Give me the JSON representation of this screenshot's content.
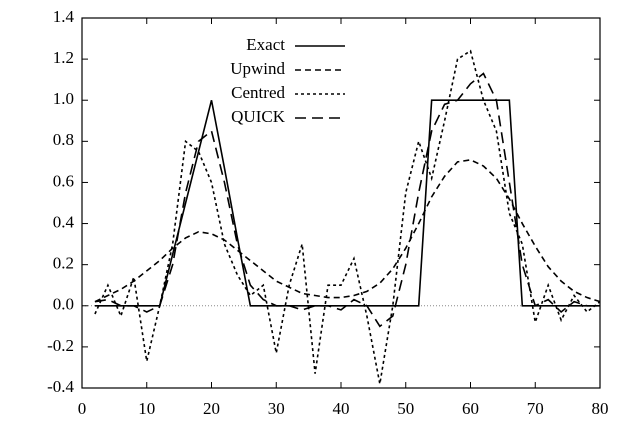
{
  "chart_data": {
    "type": "line",
    "x": [
      2,
      4,
      6,
      8,
      10,
      12,
      14,
      16,
      18,
      20,
      22,
      24,
      26,
      28,
      30,
      32,
      34,
      36,
      38,
      40,
      42,
      44,
      46,
      48,
      50,
      52,
      54,
      56,
      58,
      60,
      62,
      64,
      66,
      68,
      70,
      72,
      74,
      76,
      78,
      80
    ],
    "series": [
      {
        "name": "Exact",
        "color": "#000000",
        "dash": "solid",
        "values": [
          0,
          0,
          0,
          0,
          0,
          0,
          0.25,
          0.5,
          0.75,
          1.0,
          0.67,
          0.33,
          0,
          0,
          0,
          0,
          0,
          0,
          0,
          0,
          0,
          0,
          0,
          0,
          0,
          0,
          1,
          1,
          1,
          1,
          1,
          1,
          1,
          0,
          0,
          0,
          0,
          0,
          0,
          0
        ]
      },
      {
        "name": "Upwind",
        "color": "#000000",
        "dash": "dashed",
        "values": [
          0.02,
          0.05,
          0.08,
          0.12,
          0.17,
          0.22,
          0.28,
          0.33,
          0.36,
          0.35,
          0.32,
          0.27,
          0.22,
          0.17,
          0.12,
          0.09,
          0.06,
          0.05,
          0.04,
          0.04,
          0.05,
          0.07,
          0.11,
          0.18,
          0.28,
          0.4,
          0.53,
          0.63,
          0.7,
          0.71,
          0.68,
          0.62,
          0.52,
          0.4,
          0.29,
          0.19,
          0.12,
          0.07,
          0.04,
          0.02
        ]
      },
      {
        "name": "Centred",
        "color": "#000000",
        "dash": "dotted",
        "values": [
          -0.04,
          0.1,
          -0.05,
          0.14,
          -0.27,
          0.0,
          0.3,
          0.8,
          0.75,
          0.6,
          0.3,
          0.15,
          0.05,
          0.1,
          -0.23,
          0.1,
          0.3,
          -0.33,
          0.1,
          0.1,
          0.23,
          -0.05,
          -0.38,
          0.0,
          0.55,
          0.8,
          0.62,
          0.9,
          1.2,
          1.24,
          1.0,
          0.85,
          0.45,
          0.3,
          -0.08,
          0.1,
          -0.07,
          0.05,
          -0.03,
          0.02
        ]
      },
      {
        "name": "QUICK",
        "color": "#000000",
        "dash": "long-dashed",
        "values": [
          0.02,
          0.03,
          0.0,
          0.0,
          -0.03,
          0.0,
          0.2,
          0.55,
          0.8,
          0.85,
          0.6,
          0.3,
          0.1,
          0.03,
          0.0,
          0.0,
          -0.02,
          0.0,
          0.0,
          -0.02,
          0.03,
          0.0,
          -0.1,
          -0.05,
          0.2,
          0.55,
          0.85,
          0.98,
          1.0,
          1.08,
          1.13,
          1.0,
          0.6,
          0.2,
          0.0,
          0.03,
          -0.03,
          0.02,
          0.0,
          0.0
        ]
      }
    ],
    "xlim": [
      0,
      80
    ],
    "xticks": [
      0,
      10,
      20,
      30,
      40,
      50,
      60,
      70,
      80
    ],
    "ylim": [
      -0.4,
      1.4
    ],
    "yticks": [
      -0.4,
      -0.2,
      {
        "value": 0,
        "label": "0.0"
      },
      0.2,
      0.4,
      0.6,
      0.8,
      {
        "value": 1,
        "label": "1.0"
      },
      1.2,
      1.4
    ],
    "zero_line": true,
    "legend": "top-center"
  }
}
